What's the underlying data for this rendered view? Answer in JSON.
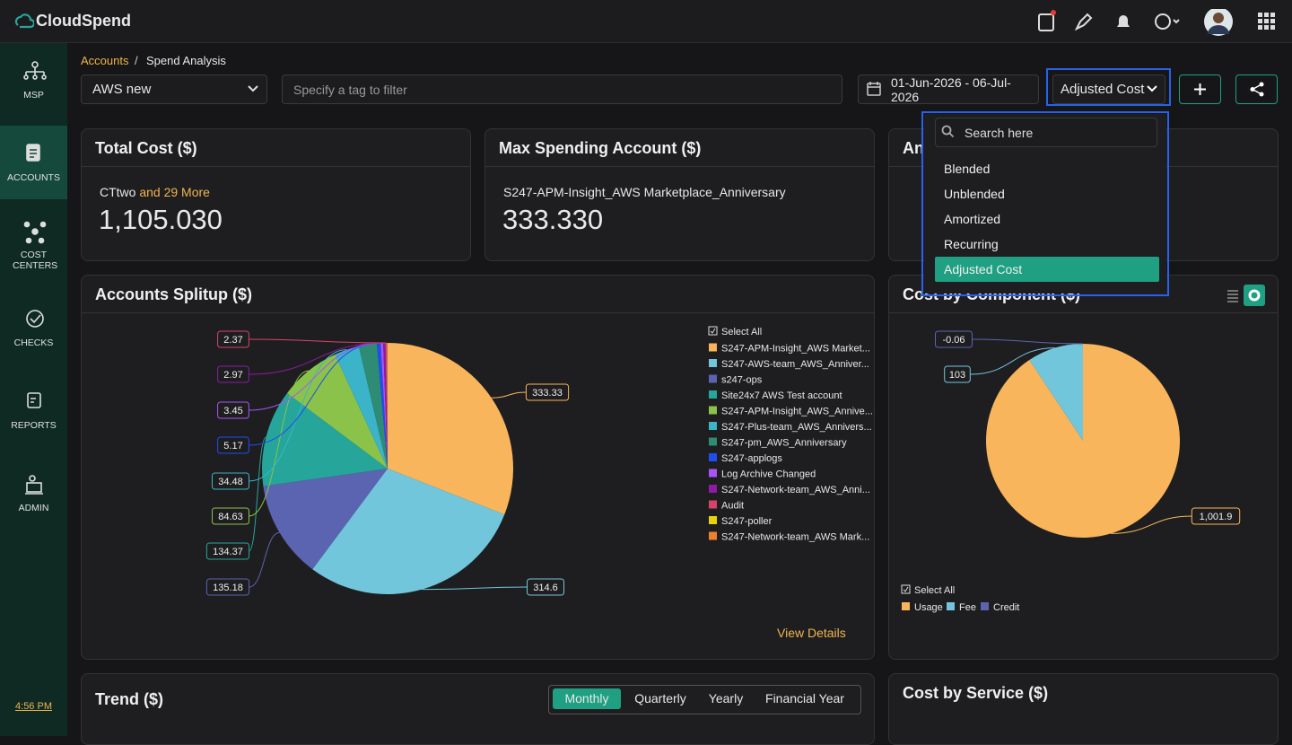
{
  "header": {
    "brand": "CloudSpend"
  },
  "sidebar": {
    "items": [
      "MSP",
      "ACCOUNTS",
      "COST CENTERS",
      "CHECKS",
      "REPORTS",
      "ADMIN"
    ],
    "time": "4:56 PM"
  },
  "breadcrumb": [
    "Accounts",
    "Spend Analysis"
  ],
  "filters": {
    "account": "AWS new",
    "tag_placeholder": "Specify a tag to filter",
    "date_range": "01-Jun-2026 - 06-Jul-2026",
    "cost_type": "Adjusted Cost"
  },
  "cost_type_menu": {
    "search_placeholder": "Search here",
    "options": [
      "Blended",
      "Unblended",
      "Amortized",
      "Recurring",
      "Adjusted Cost"
    ],
    "selected": 4
  },
  "cards": [
    {
      "title": "Total Cost ($)",
      "account": "CTtwo",
      "more": "and 29 More",
      "value": "1,105.030"
    },
    {
      "title": "Max Spending Account ($)",
      "account": "S247-APM-Insight_AWS Marketplace_Anniversary",
      "value": "333.330"
    },
    {
      "title": "An"
    }
  ],
  "chart_data": [
    {
      "type": "pie",
      "title": "Accounts Splitup ($)",
      "select_all": "Select All",
      "categories": [
        "S247-APM-Insight_AWS Market...",
        "S247-AWS-team_AWS_Anniver...",
        "s247-ops",
        "Site24x7 AWS Test account",
        "S247-APM-Insight_AWS_Annive...",
        "S247-Plus-team_AWS_Annivers...",
        "S247-pm_AWS_Anniversary",
        "S247-applogs",
        "Log Archive Changed",
        "S247-Network-team_AWS_Anni...",
        "Audit",
        "S247-poller",
        "S247-Network-team_AWS Mark..."
      ],
      "values": [
        333.33,
        314.6,
        135.18,
        134.37,
        84.63,
        34.48,
        25,
        5.17,
        3.45,
        2.97,
        2.37,
        0.5,
        0.2
      ],
      "value_labels": [
        "333.33",
        "314.6",
        "135.18",
        "134.37",
        "84.63",
        "34.48",
        null,
        "5.17",
        "3.45",
        "2.97",
        "2.37",
        null,
        null
      ],
      "colors": [
        "#f9b55c",
        "#72c6dc",
        "#5b64b0",
        "#26a69a",
        "#8bc34a",
        "#3bb3c9",
        "#2e8b74",
        "#1e4ef0",
        "#a855f7",
        "#8e1aa5",
        "#d9436a",
        "#e8d20a",
        "#f08030"
      ]
    },
    {
      "type": "pie",
      "title": "Cost by Component ($)",
      "select_all": "Select All",
      "categories": [
        "Usage",
        "Fee",
        "Credit"
      ],
      "values": [
        1001.9,
        103,
        -0.06
      ],
      "value_labels": [
        "1,001.9",
        "103",
        "-0.06"
      ],
      "colors": [
        "#f9b55c",
        "#72c6dc",
        "#5b64b0"
      ]
    }
  ],
  "view_details": "View Details",
  "trend": {
    "title": "Trend ($)",
    "tabs": [
      "Monthly",
      "Quarterly",
      "Yearly",
      "Financial Year"
    ],
    "active": 0
  },
  "service": {
    "title": "Cost by Service ($)"
  }
}
